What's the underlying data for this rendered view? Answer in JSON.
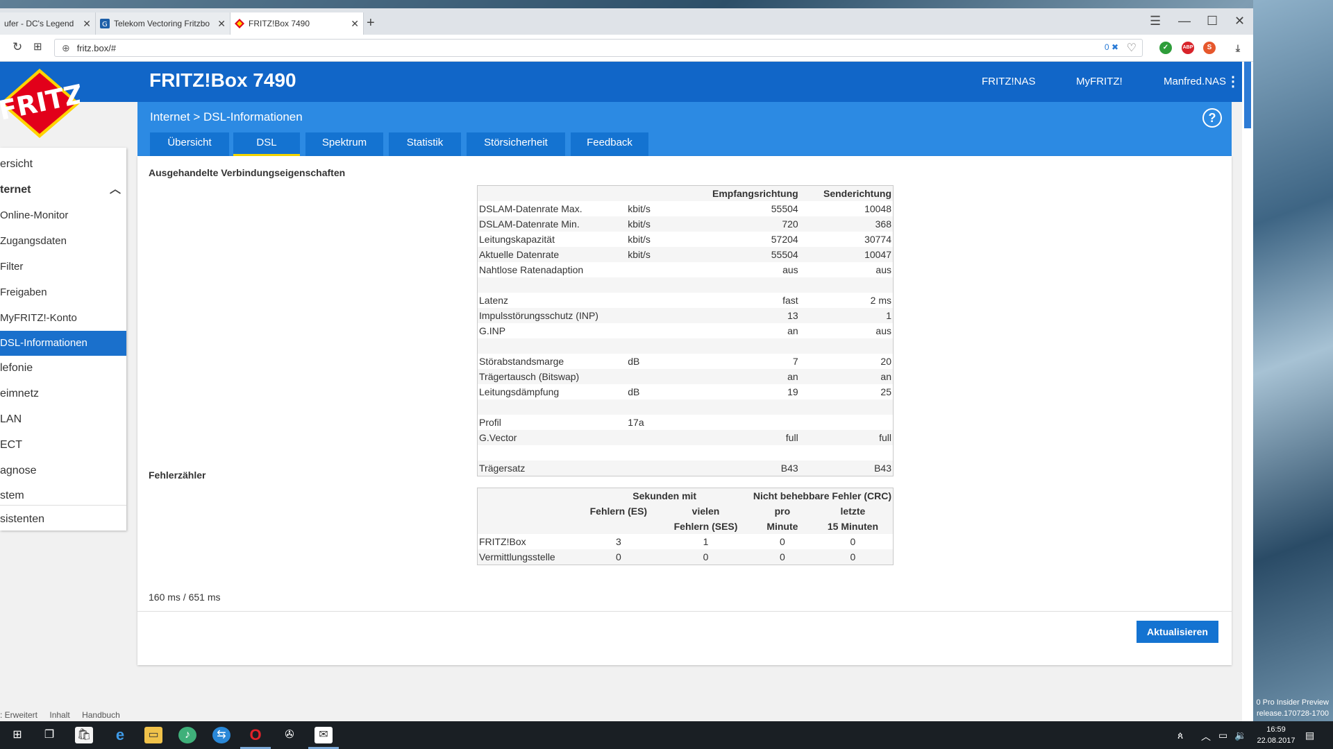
{
  "browser": {
    "tabs": [
      {
        "title": "ufer - DC's Legend"
      },
      {
        "title": "Telekom Vectoring Fritzbo"
      },
      {
        "title": "FRITZ!Box 7490"
      }
    ],
    "url": "fritz.box/#",
    "url_badge": "0"
  },
  "fritz": {
    "product": "FRITZ!Box 7490",
    "header_links": [
      "FRITZ!NAS",
      "MyFRITZ!",
      "Manfred.NAS"
    ],
    "breadcrumb": "Internet > DSL-Informationen",
    "help": "?",
    "tabs": [
      "Übersicht",
      "DSL",
      "Spektrum",
      "Statistik",
      "Störsicherheit",
      "Feedback"
    ],
    "active_tab": "DSL"
  },
  "sidebar": {
    "items": [
      {
        "label": "ersicht"
      },
      {
        "label": "ternet"
      },
      {
        "label": "Online-Monitor"
      },
      {
        "label": "Zugangsdaten"
      },
      {
        "label": "Filter"
      },
      {
        "label": "Freigaben"
      },
      {
        "label": "MyFRITZ!-Konto"
      },
      {
        "label": "DSL-Informationen"
      },
      {
        "label": "lefonie"
      },
      {
        "label": "eimnetz"
      },
      {
        "label": "LAN"
      },
      {
        "label": "ECT"
      },
      {
        "label": "agnose"
      },
      {
        "label": "stem"
      },
      {
        "label": "sistenten"
      }
    ]
  },
  "connection": {
    "title": "Ausgehandelte Verbindungseigenschaften",
    "col_rx": "Empfangsrichtung",
    "col_tx": "Senderichtung",
    "rows": [
      {
        "label": "DSLAM-Datenrate Max.",
        "unit": "kbit/s",
        "rx": "55504",
        "tx": "10048"
      },
      {
        "label": "DSLAM-Datenrate Min.",
        "unit": "kbit/s",
        "rx": "720",
        "tx": "368"
      },
      {
        "label": "Leitungskapazität",
        "unit": "kbit/s",
        "rx": "57204",
        "tx": "30774"
      },
      {
        "label": "Aktuelle Datenrate",
        "unit": "kbit/s",
        "rx": "55504",
        "tx": "10047"
      },
      {
        "label": "Nahtlose Ratenadaption",
        "unit": "",
        "rx": "aus",
        "tx": "aus"
      },
      {
        "label": "",
        "unit": "",
        "rx": "",
        "tx": ""
      },
      {
        "label": "Latenz",
        "unit": "",
        "rx": "fast",
        "tx": "2 ms"
      },
      {
        "label": "Impulsstörungsschutz (INP)",
        "unit": "",
        "rx": "13",
        "tx": "1"
      },
      {
        "label": "G.INP",
        "unit": "",
        "rx": "an",
        "tx": "aus"
      },
      {
        "label": "",
        "unit": "",
        "rx": "",
        "tx": ""
      },
      {
        "label": "Störabstandsmarge",
        "unit": "dB",
        "rx": "7",
        "tx": "20"
      },
      {
        "label": "Trägertausch (Bitswap)",
        "unit": "",
        "rx": "an",
        "tx": "an"
      },
      {
        "label": "Leitungsdämpfung",
        "unit": "dB",
        "rx": "19",
        "tx": "25"
      },
      {
        "label": "",
        "unit": "",
        "rx": "",
        "tx": ""
      },
      {
        "label": "Profil",
        "unit": "17a",
        "rx": "",
        "tx": ""
      },
      {
        "label": "G.Vector",
        "unit": "",
        "rx": "full",
        "tx": "full"
      },
      {
        "label": "",
        "unit": "",
        "rx": "",
        "tx": ""
      },
      {
        "label": "Trägersatz",
        "unit": "",
        "rx": "B43",
        "tx": "B43"
      }
    ]
  },
  "errors": {
    "title": "Fehlerzähler",
    "group1": "Sekunden mit",
    "group2": "Nicht behebbare Fehler (CRC)",
    "col_es": "Fehlern (ES)",
    "col_ses_1": "vielen",
    "col_ses_2": "Fehlern (SES)",
    "col_pm_1": "pro",
    "col_pm_2": "Minute",
    "col_15_1": "letzte",
    "col_15_2": "15 Minuten",
    "rows": [
      {
        "label": "FRITZ!Box",
        "es": "3",
        "ses": "1",
        "pm": "0",
        "m15": "0"
      },
      {
        "label": "Vermittlungsstelle",
        "es": "0",
        "ses": "0",
        "pm": "0",
        "m15": "0"
      }
    ]
  },
  "timing": "160 ms / 651 ms",
  "refresh_button": "Aktualisieren",
  "footer_links": [
    ": Erweitert",
    "Inhalt",
    "Handbuch"
  ],
  "taskbar": {
    "time": "16:59",
    "date": "22.08.2017",
    "build_line1": "0 Pro Insider Preview",
    "build_line2": "release.170728-1700"
  },
  "colors": {
    "brand_blue": "#1166c8",
    "sub_blue": "#2c8ae3",
    "tab_blue": "#1473d1",
    "accent_yellow": "#f5d700"
  }
}
